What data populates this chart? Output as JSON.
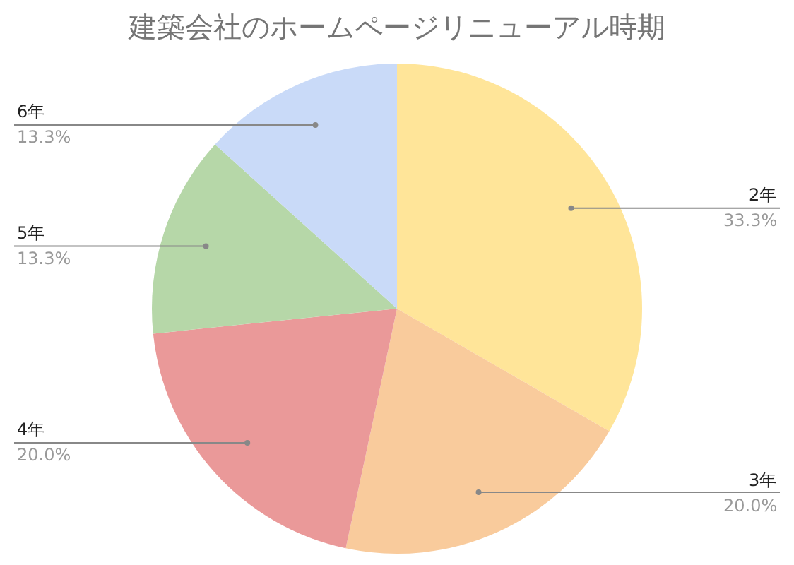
{
  "chart_data": {
    "type": "pie",
    "title": "建築会社のホームページリニューアル時期",
    "categories": [
      "2年",
      "3年",
      "4年",
      "5年",
      "6年"
    ],
    "values": [
      33.3,
      20.0,
      20.0,
      13.3,
      13.3
    ],
    "value_labels": [
      "33.3%",
      "20.0%",
      "20.0%",
      "13.3%",
      "13.3%"
    ],
    "colors": [
      "#ffe599",
      "#f9cb9c",
      "#ea9999",
      "#b6d7a8",
      "#c9daf8"
    ],
    "legend": false
  }
}
